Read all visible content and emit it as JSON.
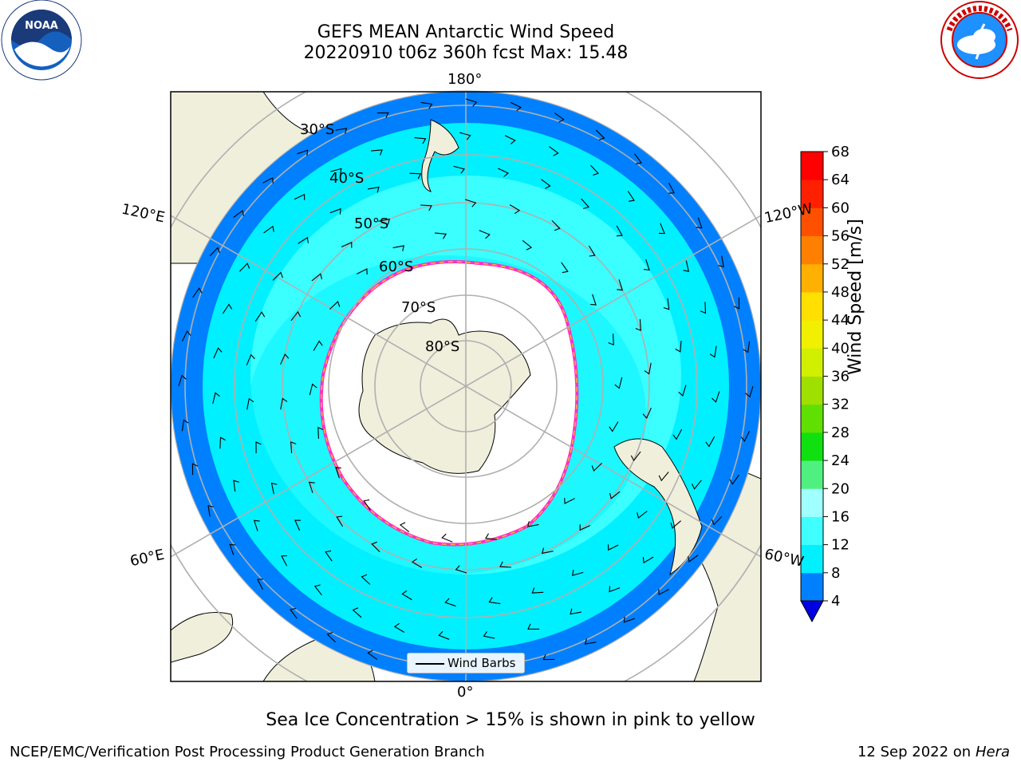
{
  "title_line1": "GEFS MEAN Antarctic Wind Speed",
  "title_line2": "20220910 t06z 360h fcst   Max: 15.48",
  "lon_labels": {
    "top": "180°",
    "bottom": "0°",
    "left_upper": "120°E",
    "left_lower": "60°E",
    "right_upper": "120°W",
    "right_lower": "60°W"
  },
  "lat_labels": [
    "30°S",
    "40°S",
    "50°S",
    "60°S",
    "70°S",
    "80°S"
  ],
  "legend_label": "Wind Barbs",
  "colorbar": {
    "label": "Wind Speed [m/s]",
    "ticks": [
      4,
      8,
      12,
      16,
      20,
      24,
      28,
      32,
      36,
      40,
      44,
      48,
      52,
      56,
      60,
      64,
      68
    ],
    "colors": [
      "#0080ff",
      "#00f0ff",
      "#40ffff",
      "#a0ffff",
      "#50f080",
      "#10e010",
      "#60e000",
      "#a0e000",
      "#d0f000",
      "#f0f000",
      "#ffe000",
      "#ffb000",
      "#ff8000",
      "#ff5000",
      "#ff2000",
      "#ff0000"
    ],
    "under_color": "#0000e0"
  },
  "note": "Sea Ice Concentration > 15% is shown in pink to yellow",
  "footer_left": "NCEP/EMC/Verification Post Processing Product Generation Branch",
  "footer_date": "12 Sep 2022 on",
  "footer_machine": "Hera",
  "logos": {
    "left": "noaa-logo",
    "right": "nws-logo"
  }
}
